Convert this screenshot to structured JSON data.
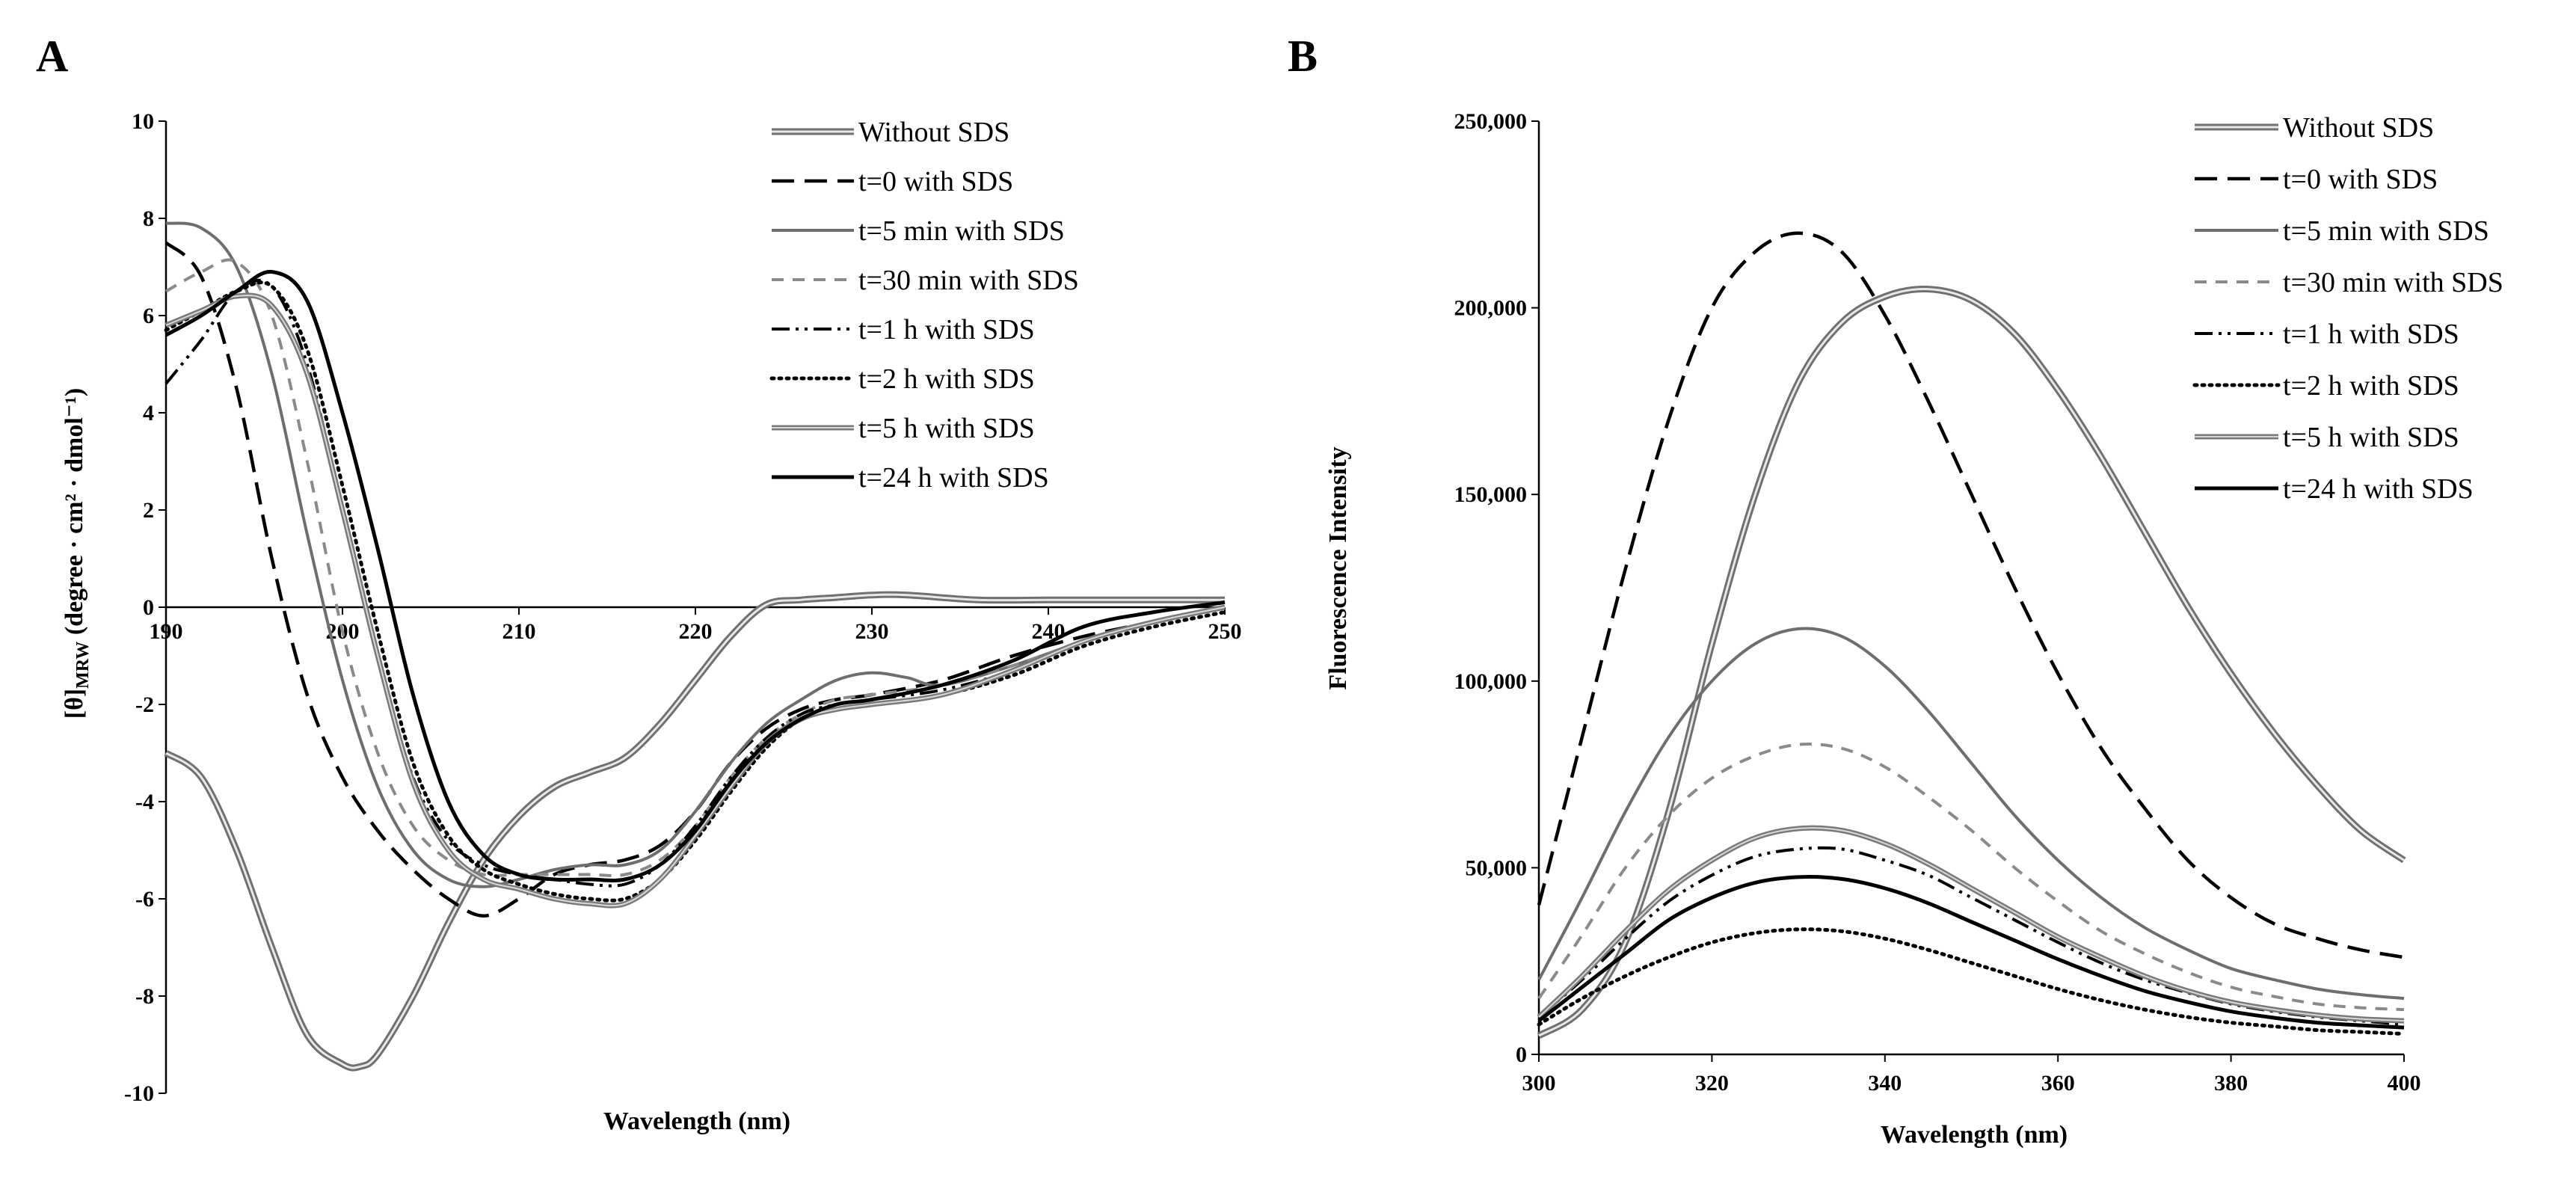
{
  "chart_data": [
    {
      "type": "line",
      "panel_label": "A",
      "title": "",
      "xlabel": "Wavelength (nm)",
      "ylabel": "[θ]",
      "ylabel_sub": "MRW",
      "ylabel_units": " (degree · cm² · dmol⁻¹)",
      "xlim": [
        190,
        250
      ],
      "ylim": [
        -10,
        10
      ],
      "xticks": [
        "190",
        "200",
        "210",
        "220",
        "230",
        "240",
        "250"
      ],
      "xtick_values": [
        190,
        200,
        210,
        220,
        230,
        240,
        250
      ],
      "yticks": [
        "10",
        "8",
        "6",
        "4",
        "2",
        "0",
        "-2",
        "-4",
        "-6",
        "-8",
        "-10"
      ],
      "ytick_values": [
        10,
        8,
        6,
        4,
        2,
        0,
        -2,
        -4,
        -6,
        -8,
        -10
      ],
      "grid": false,
      "legend_position": "top-right",
      "series": [
        {
          "name": "Without SDS",
          "style": "double-gray",
          "x": [
            190,
            192,
            194,
            196,
            198,
            200,
            201,
            202,
            204,
            206,
            208,
            210,
            212,
            214,
            216,
            218,
            220,
            222,
            224,
            226,
            228,
            230,
            232,
            236,
            240,
            244,
            248,
            250
          ],
          "y": [
            -3.0,
            -3.5,
            -5.0,
            -7.0,
            -8.8,
            -9.4,
            -9.45,
            -9.2,
            -8.0,
            -6.5,
            -5.2,
            -4.3,
            -3.7,
            -3.4,
            -3.1,
            -2.4,
            -1.5,
            -0.6,
            0.05,
            0.15,
            0.2,
            0.25,
            0.25,
            0.15,
            0.15,
            0.15,
            0.15,
            0.15
          ]
        },
        {
          "name": "t=0 with SDS",
          "style": "long-dash",
          "x": [
            190,
            192,
            194,
            196,
            198,
            200,
            202,
            204,
            206,
            208,
            210,
            212,
            214,
            216,
            218,
            220,
            222,
            224,
            226,
            228,
            230,
            234,
            238,
            242,
            246,
            250
          ],
          "y": [
            7.5,
            6.8,
            4.5,
            1.0,
            -1.8,
            -3.5,
            -4.6,
            -5.4,
            -6.0,
            -6.35,
            -6.0,
            -5.5,
            -5.3,
            -5.2,
            -4.9,
            -4.2,
            -3.2,
            -2.5,
            -2.1,
            -1.9,
            -1.8,
            -1.5,
            -1.0,
            -0.6,
            -0.3,
            0.0
          ]
        },
        {
          "name": "t=5 min with SDS",
          "style": "solid-gray",
          "x": [
            190,
            192,
            194,
            196,
            198,
            200,
            202,
            204,
            206,
            208,
            210,
            212,
            214,
            216,
            218,
            220,
            222,
            224,
            226,
            228,
            230,
            232,
            234,
            238,
            242,
            246,
            250
          ],
          "y": [
            7.9,
            7.8,
            7.0,
            4.8,
            1.5,
            -1.5,
            -3.7,
            -5.0,
            -5.6,
            -5.75,
            -5.6,
            -5.4,
            -5.3,
            -5.3,
            -5.0,
            -4.2,
            -3.2,
            -2.4,
            -1.9,
            -1.5,
            -1.35,
            -1.45,
            -1.6,
            -1.2,
            -0.7,
            -0.3,
            0.0
          ]
        },
        {
          "name": "t=30 min with SDS",
          "style": "short-dash-gray",
          "x": [
            190,
            192,
            194,
            196,
            198,
            200,
            202,
            204,
            206,
            208,
            210,
            212,
            214,
            216,
            218,
            220,
            222,
            224,
            226,
            228,
            230,
            234,
            238,
            242,
            246,
            250
          ],
          "y": [
            6.5,
            6.9,
            7.1,
            6.0,
            3.0,
            -0.5,
            -3.0,
            -4.5,
            -5.2,
            -5.5,
            -5.5,
            -5.5,
            -5.5,
            -5.5,
            -5.2,
            -4.5,
            -3.5,
            -2.7,
            -2.2,
            -1.9,
            -1.8,
            -1.6,
            -1.2,
            -0.7,
            -0.3,
            0.0
          ]
        },
        {
          "name": "t=1 h with SDS",
          "style": "dash-dot-dot",
          "x": [
            190,
            192,
            194,
            196,
            198,
            200,
            202,
            204,
            206,
            208,
            210,
            212,
            214,
            216,
            218,
            220,
            222,
            224,
            226,
            228,
            230,
            234,
            238,
            242,
            246,
            250
          ],
          "y": [
            4.6,
            5.5,
            6.5,
            6.6,
            5.0,
            2.0,
            -1.0,
            -3.5,
            -4.8,
            -5.3,
            -5.5,
            -5.6,
            -5.7,
            -5.7,
            -5.3,
            -4.5,
            -3.5,
            -2.7,
            -2.2,
            -2.0,
            -1.9,
            -1.7,
            -1.3,
            -0.7,
            -0.3,
            0.0
          ]
        },
        {
          "name": "t=2 h with SDS",
          "style": "dotted",
          "x": [
            190,
            192,
            194,
            196,
            198,
            200,
            202,
            204,
            206,
            208,
            210,
            212,
            214,
            216,
            218,
            220,
            222,
            224,
            226,
            228,
            230,
            234,
            238,
            242,
            246,
            250
          ],
          "y": [
            5.7,
            6.1,
            6.5,
            6.6,
            5.3,
            2.5,
            -0.5,
            -3.2,
            -4.7,
            -5.4,
            -5.7,
            -5.9,
            -6.0,
            -6.0,
            -5.6,
            -4.8,
            -3.8,
            -2.9,
            -2.3,
            -2.1,
            -2.0,
            -1.8,
            -1.4,
            -0.8,
            -0.4,
            -0.1
          ]
        },
        {
          "name": "t=5 h with SDS",
          "style": "double-gray-thin",
          "x": [
            190,
            192,
            194,
            196,
            198,
            200,
            202,
            204,
            206,
            208,
            210,
            212,
            214,
            216,
            218,
            220,
            222,
            224,
            226,
            228,
            230,
            234,
            238,
            242,
            246,
            250
          ],
          "y": [
            5.8,
            6.1,
            6.4,
            6.2,
            4.8,
            2.0,
            -1.0,
            -3.6,
            -5.0,
            -5.6,
            -5.8,
            -6.0,
            -6.1,
            -6.1,
            -5.6,
            -4.7,
            -3.7,
            -2.8,
            -2.3,
            -2.1,
            -2.0,
            -1.8,
            -1.3,
            -0.7,
            -0.3,
            0.0
          ]
        },
        {
          "name": "t=24 h  with SDS",
          "style": "solid-black",
          "x": [
            190,
            192,
            194,
            196,
            198,
            200,
            202,
            204,
            206,
            208,
            210,
            212,
            214,
            216,
            218,
            220,
            222,
            224,
            226,
            228,
            230,
            234,
            238,
            242,
            246,
            250
          ],
          "y": [
            5.6,
            6.0,
            6.5,
            6.9,
            6.3,
            4.0,
            1.2,
            -1.8,
            -4.0,
            -5.1,
            -5.5,
            -5.6,
            -5.6,
            -5.6,
            -5.3,
            -4.6,
            -3.6,
            -2.8,
            -2.3,
            -2.0,
            -1.9,
            -1.6,
            -1.1,
            -0.4,
            -0.1,
            0.1
          ]
        }
      ]
    },
    {
      "type": "line",
      "panel_label": "B",
      "title": "",
      "xlabel": "Wavelength (nm)",
      "ylabel": "Fluorescence Intensity",
      "xlim": [
        300,
        400
      ],
      "ylim": [
        0,
        250000
      ],
      "xticks": [
        "300",
        "320",
        "340",
        "360",
        "380",
        "400"
      ],
      "xtick_values": [
        300,
        320,
        340,
        360,
        380,
        400
      ],
      "yticks": [
        "250,000",
        "200,000",
        "150,000",
        "100,000",
        "50,000",
        "0"
      ],
      "ytick_values": [
        250000,
        200000,
        150000,
        100000,
        50000,
        0
      ],
      "grid": false,
      "legend_position": "top-right",
      "series": [
        {
          "name": "Without SDS",
          "style": "double-gray",
          "x": [
            300,
            305,
            310,
            315,
            320,
            325,
            330,
            335,
            340,
            345,
            350,
            355,
            360,
            365,
            370,
            375,
            380,
            385,
            390,
            395,
            400
          ],
          "y": [
            5000,
            12000,
            30000,
            65000,
            110000,
            150000,
            180000,
            196000,
            203000,
            205000,
            202000,
            193000,
            178000,
            160000,
            140000,
            120000,
            102000,
            86000,
            72000,
            60000,
            52000
          ]
        },
        {
          "name": "t=0 with SDS",
          "style": "long-dash",
          "x": [
            300,
            305,
            310,
            315,
            320,
            325,
            330,
            335,
            340,
            345,
            350,
            355,
            360,
            365,
            370,
            375,
            380,
            385,
            390,
            395,
            400
          ],
          "y": [
            40000,
            85000,
            130000,
            170000,
            200000,
            215000,
            220000,
            215000,
            198000,
            175000,
            150000,
            125000,
            102000,
            82000,
            66000,
            52000,
            42000,
            35000,
            31000,
            28000,
            26000
          ]
        },
        {
          "name": "t=5 min with SDS",
          "style": "solid-gray",
          "x": [
            300,
            305,
            310,
            315,
            320,
            325,
            330,
            335,
            340,
            345,
            350,
            355,
            360,
            365,
            370,
            375,
            380,
            385,
            390,
            395,
            400
          ],
          "y": [
            20000,
            42000,
            65000,
            85000,
            100000,
            110000,
            114000,
            112000,
            104000,
            92000,
            78000,
            64000,
            52000,
            42000,
            34000,
            28000,
            23000,
            20000,
            17500,
            16000,
            15000
          ]
        },
        {
          "name": "t=30 min with SDS",
          "style": "short-dash-gray",
          "x": [
            300,
            305,
            310,
            315,
            320,
            325,
            330,
            335,
            340,
            345,
            350,
            355,
            360,
            365,
            370,
            375,
            380,
            385,
            390,
            395,
            400
          ],
          "y": [
            15000,
            32000,
            50000,
            64000,
            74000,
            80000,
            83000,
            82000,
            77000,
            69000,
            60000,
            50000,
            41000,
            33000,
            27000,
            22000,
            18000,
            15500,
            13500,
            12500,
            12000
          ]
        },
        {
          "name": "t=1 h with SDS",
          "style": "dash-dot-dot",
          "x": [
            300,
            305,
            310,
            315,
            320,
            325,
            330,
            335,
            340,
            345,
            350,
            355,
            360,
            365,
            370,
            375,
            380,
            385,
            390,
            395,
            400
          ],
          "y": [
            10000,
            20000,
            31000,
            41000,
            48000,
            53000,
            55000,
            55000,
            52000,
            48000,
            42000,
            36000,
            30000,
            24500,
            20000,
            16500,
            13500,
            11500,
            10000,
            9000,
            8000
          ]
        },
        {
          "name": "t=2 h with SDS",
          "style": "dotted",
          "x": [
            300,
            305,
            310,
            315,
            320,
            325,
            330,
            335,
            340,
            345,
            350,
            355,
            360,
            365,
            370,
            375,
            380,
            385,
            390,
            395,
            400
          ],
          "y": [
            8000,
            15000,
            21000,
            26000,
            30000,
            32500,
            33500,
            33000,
            31000,
            28000,
            24500,
            21000,
            17500,
            14500,
            12000,
            10000,
            8500,
            7500,
            6500,
            6000,
            5500
          ]
        },
        {
          "name": "t=5 h with SDS",
          "style": "double-gray-thin",
          "x": [
            300,
            305,
            310,
            315,
            320,
            325,
            330,
            335,
            340,
            345,
            350,
            355,
            360,
            365,
            370,
            375,
            380,
            385,
            390,
            395,
            400
          ],
          "y": [
            10000,
            21000,
            33000,
            44000,
            52000,
            58000,
            60500,
            60000,
            56500,
            51000,
            44500,
            38000,
            31500,
            26000,
            21000,
            17000,
            14000,
            12000,
            10500,
            9500,
            9000
          ]
        },
        {
          "name": "t=24 h with SDS",
          "style": "solid-black",
          "x": [
            300,
            305,
            310,
            315,
            320,
            325,
            330,
            335,
            340,
            345,
            350,
            355,
            360,
            365,
            370,
            375,
            380,
            385,
            390,
            395,
            400
          ],
          "y": [
            9000,
            18000,
            27000,
            36000,
            42000,
            46000,
            47500,
            47000,
            44500,
            40500,
            35500,
            30500,
            25500,
            21000,
            17000,
            14000,
            11500,
            9800,
            8500,
            7800,
            7200
          ]
        }
      ]
    }
  ]
}
